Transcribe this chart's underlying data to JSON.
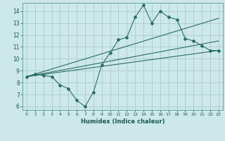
{
  "xlabel": "Humidex (Indice chaleur)",
  "bg_color": "#cce8e8",
  "grid_color": "#aacccc",
  "line_color": "#2a7060",
  "xlim": [
    -0.5,
    23.5
  ],
  "ylim": [
    5.7,
    14.7
  ],
  "xticks": [
    0,
    1,
    2,
    3,
    4,
    5,
    6,
    7,
    8,
    9,
    10,
    11,
    12,
    13,
    14,
    15,
    16,
    17,
    18,
    19,
    20,
    21,
    22,
    23
  ],
  "yticks": [
    6,
    7,
    8,
    9,
    10,
    11,
    12,
    13,
    14
  ],
  "series_dots": {
    "x": [
      0,
      1,
      2,
      3,
      4,
      5,
      6,
      7,
      8,
      9,
      10,
      11,
      12,
      13,
      14,
      15,
      16,
      17,
      18,
      19,
      20,
      21,
      22,
      23
    ],
    "y": [
      8.5,
      8.7,
      8.6,
      8.5,
      7.8,
      7.5,
      6.5,
      6.0,
      7.2,
      9.5,
      10.5,
      11.6,
      11.8,
      13.5,
      14.5,
      13.0,
      14.0,
      13.5,
      13.3,
      11.7,
      11.5,
      11.1,
      10.7,
      10.7
    ]
  },
  "series_line1": {
    "x": [
      0,
      23
    ],
    "y": [
      8.5,
      13.4
    ]
  },
  "series_line2": {
    "x": [
      0,
      23
    ],
    "y": [
      8.5,
      11.5
    ]
  },
  "series_line3": {
    "x": [
      0,
      23
    ],
    "y": [
      8.5,
      10.7
    ]
  }
}
